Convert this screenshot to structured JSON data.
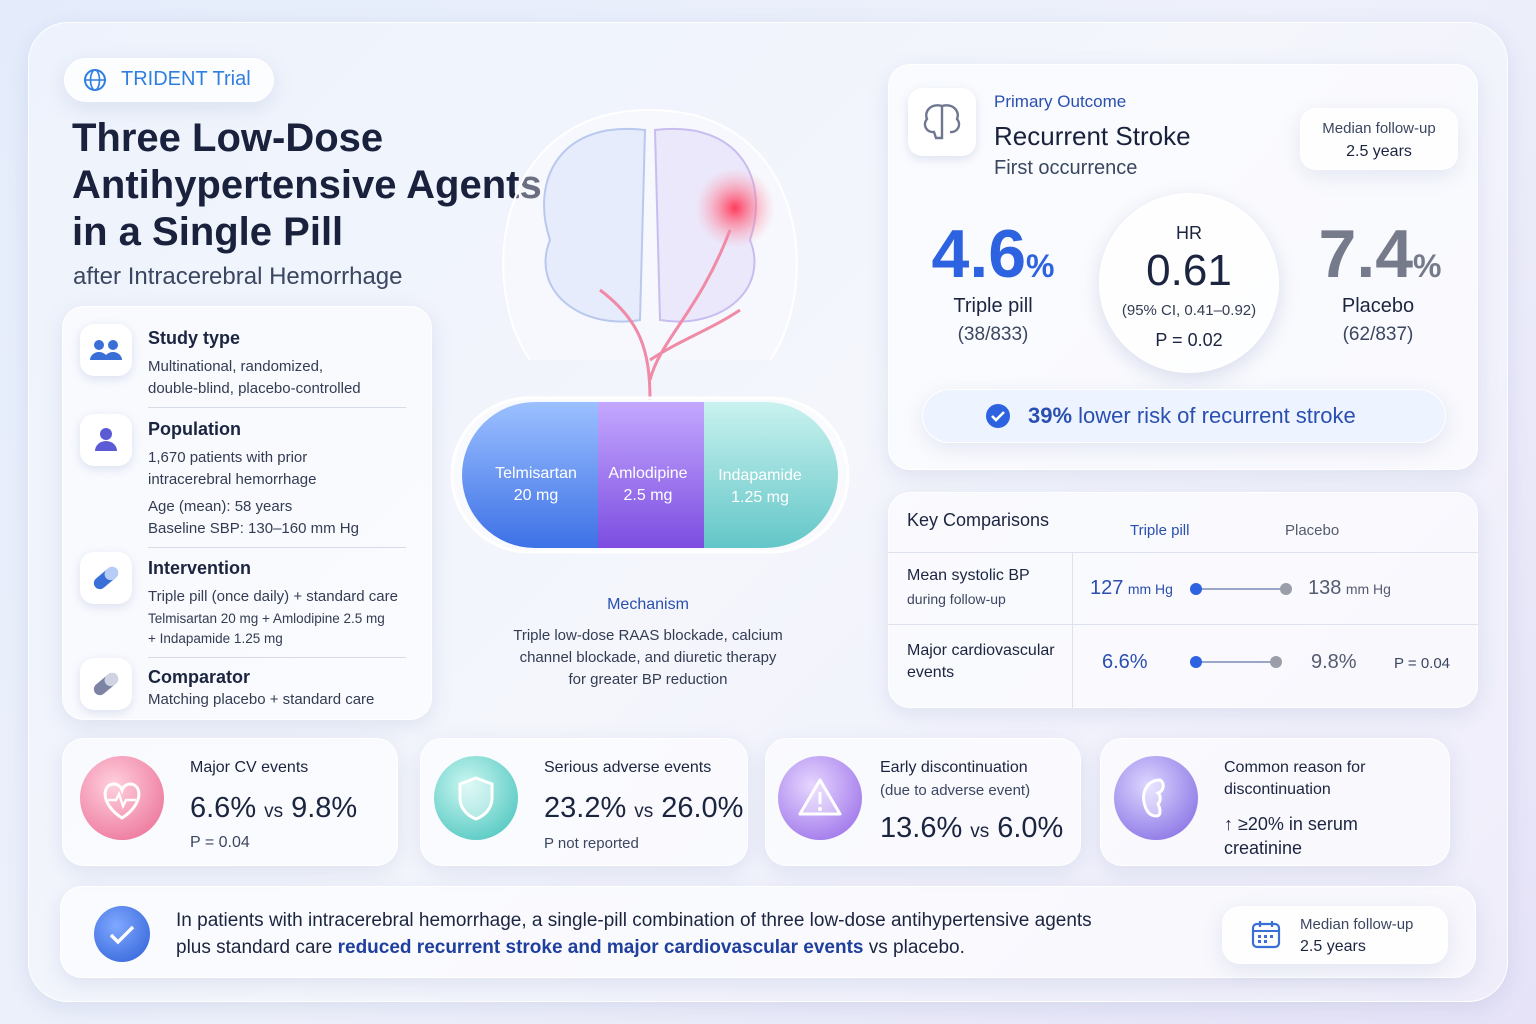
{
  "header": {
    "badge": "TRIDENT Trial",
    "title_lines": [
      "Three Low-Dose",
      "Antihypertensive Agents",
      "in a Single Pill"
    ],
    "subtitle": "after Intracerebral Hemorrhage"
  },
  "study": [
    {
      "title": "Study type",
      "lines": [
        "Multinational, randomized,",
        "double-blind, placebo-controlled"
      ]
    },
    {
      "title": "Population",
      "lines": [
        "1,670 patients with prior",
        "intracerebral hemorrhage",
        "Age (mean): 58 years",
        "Baseline SBP: 130–160 mm Hg"
      ]
    },
    {
      "title": "Intervention",
      "lines": [
        "Triple pill (once daily) + standard care"
      ],
      "small_lines": [
        "Telmisartan 20 mg + Amlodipine 2.5 mg",
        "+ Indapamide 1.25 mg"
      ]
    },
    {
      "title": "Comparator",
      "lines": [
        "Matching placebo + standard care"
      ]
    }
  ],
  "pill": [
    {
      "drug": "Telmisartan",
      "dose": "20 mg"
    },
    {
      "drug": "Amlodipine",
      "dose": "2.5 mg"
    },
    {
      "drug": "Indapamide",
      "dose": "1.25 mg"
    }
  ],
  "mechanism": {
    "title": "Mechanism",
    "lines": [
      "Triple low-dose RAAS blockade, calcium",
      "channel blockade, and diuretic therapy",
      "for greater BP reduction"
    ]
  },
  "primary_outcome": {
    "label": "Primary Outcome",
    "title": "Recurrent Stroke",
    "subtitle": "First occurrence",
    "follow_up": {
      "label": "Median follow-up",
      "value": "2.5 years"
    },
    "triple": {
      "value": "4.6",
      "unit": "%",
      "name": "Triple pill",
      "count": "(38/833)"
    },
    "hr": {
      "label": "HR",
      "value": "0.61",
      "ci": "(95% CI, 0.41–0.92)",
      "p": "P = 0.02"
    },
    "placebo": {
      "value": "7.4",
      "unit": "%",
      "name": "Placebo",
      "count": "(62/837)"
    },
    "banner": {
      "highlight": "39%",
      "text": "lower risk of recurrent stroke"
    }
  },
  "key_comparisons": {
    "title": "Key Comparisons",
    "col_triple": "Triple pill",
    "col_placebo": "Placebo",
    "rows": [
      {
        "label_lines": [
          "Mean systolic BP"
        ],
        "sub": "during follow-up",
        "triple": {
          "value": "127",
          "unit": "mm Hg"
        },
        "placebo": {
          "value": "138",
          "unit": "mm Hg"
        }
      },
      {
        "label_lines": [
          "Major cardiovascular",
          "events"
        ],
        "triple": {
          "value": "6.6%"
        },
        "placebo": {
          "value": "9.8%"
        },
        "p": "P = 0.04"
      }
    ]
  },
  "stats": [
    {
      "title_lines": [
        "Major CV events"
      ],
      "a": "6.6%",
      "vs": "vs",
      "b": "9.8%",
      "note": "P = 0.04"
    },
    {
      "title_lines": [
        "Serious adverse events"
      ],
      "a": "23.2%",
      "vs": "vs",
      "b": "26.0%",
      "note": "P not reported"
    },
    {
      "title_lines": [
        "Early discontinuation"
      ],
      "sub": "(due to adverse event)",
      "a": "13.6%",
      "vs": "vs",
      "b": "6.0%"
    },
    {
      "title_lines": [
        "Common reason for",
        "discontinuation"
      ],
      "text_lines": [
        "↑ ≥20% in serum",
        "creatinine"
      ]
    }
  ],
  "conclusion": {
    "line1": "In patients with intracerebral hemorrhage, a single-pill combination of three low-dose antihypertensive agents",
    "line2_before": "plus standard care",
    "highlight": "reduced recurrent stroke and major cardiovascular events",
    "line2_after": "vs placebo.",
    "follow_up": {
      "label": "Median follow-up",
      "value": "2.5 years"
    }
  }
}
